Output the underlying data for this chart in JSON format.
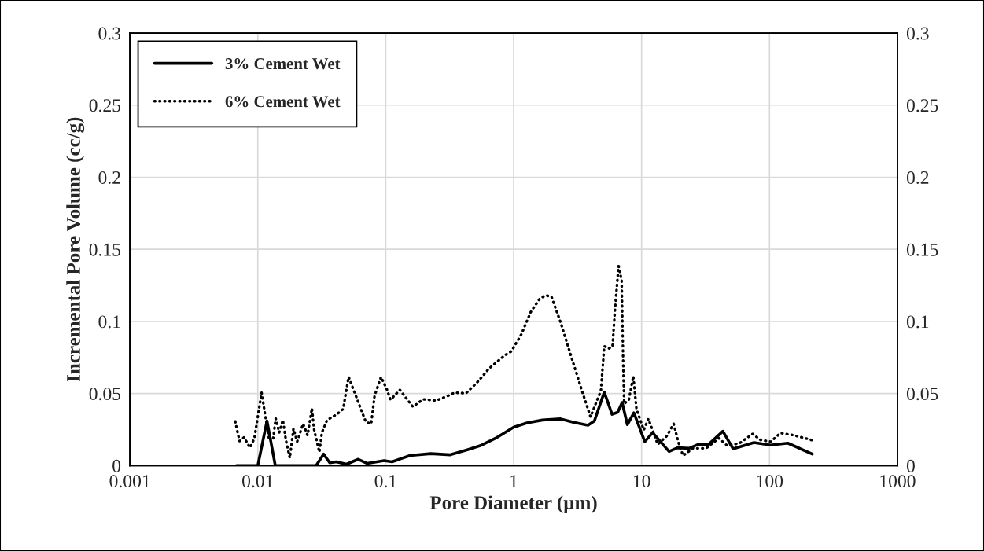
{
  "chart_data": {
    "type": "line",
    "xlabel": "Pore Diameter (µm)",
    "ylabel": "Incremental Pore Volume (cc/g)",
    "log": "x",
    "xlim": [
      0.001,
      1000
    ],
    "xticks": [
      0.001,
      0.01,
      0.1,
      1,
      10,
      100,
      1000
    ],
    "ylim": [
      0,
      0.3
    ],
    "yticks": [
      0,
      0.05,
      0.1,
      0.15,
      0.2,
      0.25,
      0.3
    ],
    "y2lim": [
      0,
      0.3
    ],
    "y2ticks": [
      0,
      0.05,
      0.1,
      0.15,
      0.2,
      0.25,
      0.3
    ],
    "grid": true,
    "legend": "top left",
    "marker": "none",
    "series": [
      {
        "name": "3% Cement Wet",
        "color": "#000000",
        "line_style": "solid",
        "x": [
          0.0068,
          0.01,
          0.0118,
          0.0137,
          0.0286,
          0.0327,
          0.0365,
          0.041,
          0.0494,
          0.061,
          0.0718,
          0.097,
          0.112,
          0.155,
          0.225,
          0.32,
          0.434,
          0.547,
          0.724,
          1.0,
          1.27,
          1.68,
          2.33,
          2.94,
          3.81,
          4.28,
          5.11,
          5.88,
          6.51,
          7.05,
          7.74,
          8.71,
          10.6,
          12.2,
          16.4,
          19.1,
          23.5,
          27.7,
          33.4,
          43.2,
          52,
          75.6,
          102,
          139,
          216
        ],
        "values": [
          0,
          0,
          0.031,
          0,
          0,
          0.008,
          0.002,
          0.0026,
          0.001,
          0.0044,
          0.0015,
          0.0035,
          0.0026,
          0.007,
          0.0083,
          0.0075,
          0.011,
          0.0138,
          0.019,
          0.0266,
          0.0296,
          0.0316,
          0.0324,
          0.03,
          0.028,
          0.031,
          0.051,
          0.0356,
          0.037,
          0.0438,
          0.0284,
          0.0366,
          0.0166,
          0.0229,
          0.0098,
          0.0124,
          0.012,
          0.0147,
          0.0147,
          0.0238,
          0.0116,
          0.016,
          0.0142,
          0.0156,
          0.008
        ]
      },
      {
        "name": "6% Cement Wet",
        "color": "#000000",
        "line_style": "dotted",
        "x": [
          0.00666,
          0.0072,
          0.0078,
          0.0087,
          0.0094,
          0.0107,
          0.0114,
          0.0122,
          0.0132,
          0.0138,
          0.0147,
          0.0157,
          0.0166,
          0.0178,
          0.019,
          0.0203,
          0.0226,
          0.0245,
          0.0265,
          0.0275,
          0.0303,
          0.0317,
          0.0348,
          0.0415,
          0.0465,
          0.0513,
          0.0569,
          0.0639,
          0.07,
          0.077,
          0.0818,
          0.0919,
          0.102,
          0.109,
          0.129,
          0.163,
          0.196,
          0.248,
          0.313,
          0.344,
          0.424,
          0.511,
          0.645,
          0.853,
          0.96,
          1.15,
          1.36,
          1.6,
          1.78,
          1.98,
          2.33,
          2.88,
          3.47,
          3.99,
          4.81,
          5.11,
          5.54,
          5.93,
          6.22,
          6.61,
          6.99,
          7.16,
          7.31,
          7.96,
          8.62,
          9.12,
          10.4,
          11.3,
          13.4,
          15.8,
          17.8,
          19.5,
          21.1,
          25.2,
          31.9,
          40.3,
          46.8,
          58.5,
          73.9,
          85,
          102,
          122,
          156,
          219
        ],
        "values": [
          0.0306,
          0.017,
          0.0196,
          0.0124,
          0.019,
          0.0506,
          0.0356,
          0.0193,
          0.019,
          0.0327,
          0.0229,
          0.0316,
          0.0175,
          0.0053,
          0.0256,
          0.0166,
          0.029,
          0.021,
          0.0397,
          0.0253,
          0.0093,
          0.0229,
          0.0316,
          0.0356,
          0.0393,
          0.0615,
          0.0511,
          0.0393,
          0.0302,
          0.029,
          0.0484,
          0.0615,
          0.0529,
          0.0457,
          0.0525,
          0.0408,
          0.046,
          0.0451,
          0.0487,
          0.0506,
          0.0502,
          0.0571,
          0.0675,
          0.0765,
          0.0793,
          0.0911,
          0.1065,
          0.1157,
          0.1182,
          0.1169,
          0.0993,
          0.073,
          0.0502,
          0.0338,
          0.052,
          0.0829,
          0.0811,
          0.0829,
          0.11,
          0.1384,
          0.1284,
          0.0775,
          0.0429,
          0.0457,
          0.062,
          0.0393,
          0.0247,
          0.0324,
          0.0147,
          0.0207,
          0.029,
          0.0156,
          0.0069,
          0.012,
          0.012,
          0.019,
          0.0138,
          0.0156,
          0.022,
          0.0178,
          0.0166,
          0.0226,
          0.021,
          0.0175
        ]
      }
    ]
  }
}
